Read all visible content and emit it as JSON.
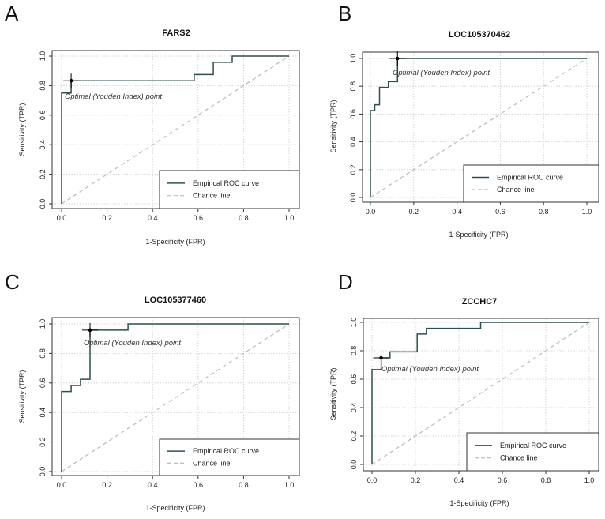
{
  "figure": {
    "panels": [
      {
        "letter": "A",
        "chart_index": 0
      },
      {
        "letter": "B",
        "chart_index": 1
      },
      {
        "letter": "C",
        "chart_index": 2
      },
      {
        "letter": "D",
        "chart_index": 3
      }
    ]
  },
  "colors": {
    "roc": "#2f4f4f",
    "chance": "#bbbbbb",
    "grid": "#c8c8c8",
    "axis": "#333333",
    "point": "#000000"
  },
  "chart_data": [
    {
      "type": "line",
      "title": "FARS2",
      "xlabel": "1-Specificity (FPR)",
      "ylabel": "Sensitivity (TPR)",
      "xlim": [
        0,
        1
      ],
      "ylim": [
        0,
        1
      ],
      "xticks": [
        "0.0",
        "0.2",
        "0.4",
        "0.6",
        "0.8",
        "1.0"
      ],
      "yticks": [
        "0.0",
        "0.2",
        "0.4",
        "0.6",
        "0.8",
        "1.0"
      ],
      "grid": true,
      "legend_position": "bottom-right",
      "series": [
        {
          "name": "Empirical ROC curve",
          "style": "solid",
          "x": [
            0,
            0,
            0.042,
            0.042,
            0.583,
            0.583,
            0.667,
            0.667,
            0.75,
            0.75,
            1.0
          ],
          "y": [
            0,
            0.75,
            0.75,
            0.833,
            0.833,
            0.875,
            0.875,
            0.958,
            0.958,
            1.0,
            1.0
          ]
        },
        {
          "name": "Chance line",
          "style": "dashed",
          "x": [
            0,
            1
          ],
          "y": [
            0,
            1
          ]
        }
      ],
      "optimal_point": {
        "label": "Optimal (Youden Index) point",
        "x": 0.042,
        "y": 0.833
      }
    },
    {
      "type": "line",
      "title": "LOC105370462",
      "xlabel": "1-Specificity (FPR)",
      "ylabel": "Sensitivity (TPR)",
      "xlim": [
        0,
        1
      ],
      "ylim": [
        0,
        1
      ],
      "xticks": [
        "0.0",
        "0.2",
        "0.4",
        "0.6",
        "0.8",
        "1.0"
      ],
      "yticks": [
        "0.0",
        "0.2",
        "0.4",
        "0.6",
        "0.8",
        "1.0"
      ],
      "grid": true,
      "legend_position": "bottom-right",
      "series": [
        {
          "name": "Empirical ROC curve",
          "style": "solid",
          "x": [
            0,
            0,
            0.02,
            0.02,
            0.042,
            0.042,
            0.083,
            0.083,
            0.125,
            0.125,
            1.0
          ],
          "y": [
            0,
            0.625,
            0.625,
            0.667,
            0.667,
            0.792,
            0.792,
            0.833,
            0.833,
            1.0,
            1.0
          ]
        },
        {
          "name": "Chance line",
          "style": "dashed",
          "x": [
            0,
            1
          ],
          "y": [
            0,
            1
          ]
        }
      ],
      "optimal_point": {
        "label": "Optimal (Youden Index) point",
        "x": 0.125,
        "y": 1.0
      }
    },
    {
      "type": "line",
      "title": "LOC105377460",
      "xlabel": "1-Specificity (FPR)",
      "ylabel": "Sensitivity (TPR)",
      "xlim": [
        0,
        1
      ],
      "ylim": [
        0,
        1
      ],
      "xticks": [
        "0.0",
        "0.2",
        "0.4",
        "0.6",
        "0.8",
        "1.0"
      ],
      "yticks": [
        "0.0",
        "0.2",
        "0.4",
        "0.6",
        "0.8",
        "1.0"
      ],
      "grid": true,
      "legend_position": "bottom-right",
      "series": [
        {
          "name": "Empirical ROC curve",
          "style": "solid",
          "x": [
            0,
            0,
            0.042,
            0.042,
            0.083,
            0.083,
            0.125,
            0.125,
            0.292,
            0.292,
            1.0
          ],
          "y": [
            0,
            0.542,
            0.542,
            0.583,
            0.583,
            0.625,
            0.625,
            0.958,
            0.958,
            1.0,
            1.0
          ]
        },
        {
          "name": "Chance line",
          "style": "dashed",
          "x": [
            0,
            1
          ],
          "y": [
            0,
            1
          ]
        }
      ],
      "optimal_point": {
        "label": "Optimal (Youden Index) point",
        "x": 0.125,
        "y": 0.958
      }
    },
    {
      "type": "line",
      "title": "ZCCHC7",
      "xlabel": "1-Specificity (FPR)",
      "ylabel": "Sensitivity (TPR)",
      "xlim": [
        0,
        1
      ],
      "ylim": [
        0,
        1
      ],
      "xticks": [
        "0.0",
        "0.2",
        "0.4",
        "0.6",
        "0.8",
        "1.0"
      ],
      "yticks": [
        "0.0",
        "0.2",
        "0.4",
        "0.6",
        "0.8",
        "1.0"
      ],
      "grid": true,
      "legend_position": "bottom-right",
      "series": [
        {
          "name": "Empirical ROC curve",
          "style": "solid",
          "x": [
            0,
            0,
            0.042,
            0.042,
            0.083,
            0.083,
            0.208,
            0.208,
            0.25,
            0.25,
            0.5,
            0.5,
            1.0
          ],
          "y": [
            0,
            0.667,
            0.667,
            0.75,
            0.75,
            0.792,
            0.792,
            0.917,
            0.917,
            0.958,
            0.958,
            1.0,
            1.0
          ]
        },
        {
          "name": "Chance line",
          "style": "dashed",
          "x": [
            0,
            1
          ],
          "y": [
            0,
            1
          ]
        }
      ],
      "optimal_point": {
        "label": "Optimal (Youden Index) point",
        "x": 0.042,
        "y": 0.75
      }
    }
  ]
}
